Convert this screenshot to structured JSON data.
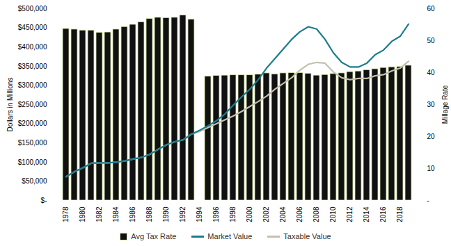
{
  "chart_data": {
    "type": "bar",
    "categories": [
      "1978",
      null,
      "1980",
      null,
      "1982",
      null,
      "1984",
      null,
      "1986",
      null,
      "1988",
      null,
      "1990",
      null,
      "1992",
      null,
      "1994",
      null,
      "1996",
      null,
      "1998",
      null,
      "2000",
      null,
      "2002",
      null,
      "2004",
      null,
      "2006",
      null,
      "2008",
      null,
      "2010",
      null,
      "2012",
      null,
      "2014",
      null,
      "2016",
      null,
      "2018",
      null
    ],
    "series": [
      {
        "name": "Avg Tax Rate",
        "type": "bar",
        "axis": "y2",
        "color": "#111111",
        "values": [
          53.7,
          53.5,
          53.2,
          53.2,
          52.5,
          52.6,
          53.5,
          54.3,
          55.0,
          55.8,
          56.8,
          57.2,
          57.1,
          57.2,
          57.9,
          56.6,
          null,
          38.8,
          39.0,
          39.1,
          39.2,
          39.2,
          39.2,
          39.4,
          39.8,
          39.5,
          39.8,
          39.9,
          39.9,
          39.7,
          39.1,
          39.3,
          39.6,
          39.8,
          40.2,
          40.4,
          40.8,
          41.1,
          41.5,
          41.7,
          41.8,
          42.2
        ]
      },
      {
        "name": "Market Value",
        "type": "line",
        "color": "#1b7c8c",
        "values": [
          62000,
          75000,
          85000,
          97000,
          98000,
          98000,
          100000,
          103000,
          108000,
          112000,
          120000,
          133000,
          145000,
          153000,
          158000,
          173000,
          183000,
          195000,
          208000,
          225000,
          248000,
          270000,
          290000,
          315000,
          345000,
          370000,
          395000,
          420000,
          440000,
          453000,
          447000,
          420000,
          385000,
          360000,
          348000,
          348000,
          358000,
          380000,
          392000,
          415000,
          428000,
          460000
        ]
      },
      {
        "name": "Taxable Value",
        "type": "line",
        "color": "#c4bfae",
        "values": [
          62000,
          75000,
          85000,
          97000,
          98000,
          98000,
          100000,
          103000,
          108000,
          112000,
          120000,
          133000,
          145000,
          153000,
          158000,
          173000,
          180000,
          190000,
          200000,
          210000,
          220000,
          232000,
          245000,
          258000,
          272000,
          290000,
          305000,
          320000,
          340000,
          355000,
          360000,
          358000,
          335000,
          320000,
          315000,
          318000,
          318000,
          325000,
          328000,
          338000,
          345000,
          363000
        ]
      }
    ],
    "y_label": "Dollars in Millions",
    "y2_label": "Millage Rate",
    "ylim": [
      0,
      500000
    ],
    "yticks": [
      {
        "value": 0,
        "label": "$-"
      },
      {
        "value": 50000,
        "label": "$50,000"
      },
      {
        "value": 100000,
        "label": "$100,000"
      },
      {
        "value": 150000,
        "label": "$150,000"
      },
      {
        "value": 200000,
        "label": "$200,000"
      },
      {
        "value": 250000,
        "label": "$250,000"
      },
      {
        "value": 300000,
        "label": "$300,000"
      },
      {
        "value": 350000,
        "label": "$350,000"
      },
      {
        "value": 400000,
        "label": "$400,000"
      },
      {
        "value": 450000,
        "label": "$450,000"
      },
      {
        "value": 500000,
        "label": "$500,000"
      }
    ],
    "y2lim": [
      0,
      60
    ],
    "y2ticks": [
      {
        "value": 0,
        "label": "-"
      },
      10,
      20,
      30,
      40,
      50,
      60
    ],
    "grid": false,
    "legend": "bottom"
  }
}
